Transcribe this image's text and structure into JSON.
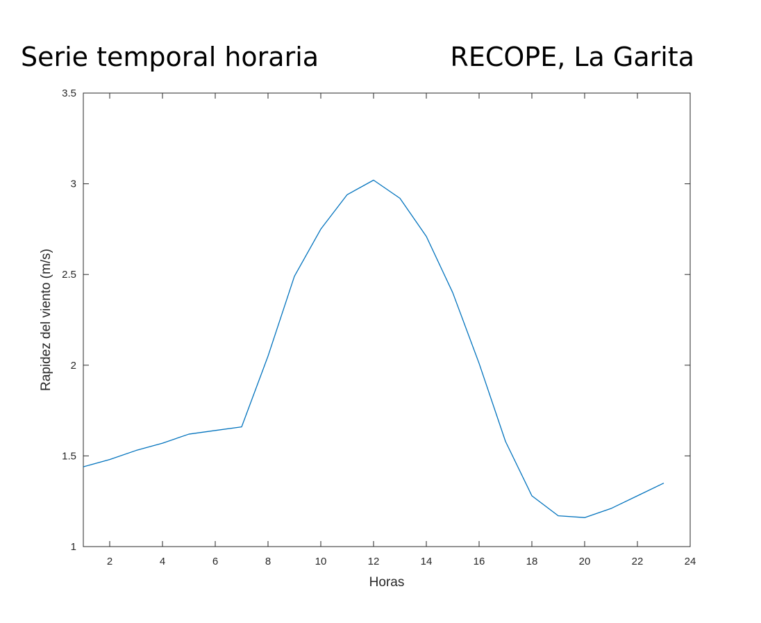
{
  "header": {
    "title_left": "Serie temporal horaria",
    "title_right": "RECOPE, La Garita"
  },
  "chart_data": {
    "type": "line",
    "xlabel": "Horas",
    "ylabel": "Rapidez del viento (m/s)",
    "xlim": [
      1,
      24
    ],
    "ylim": [
      1,
      3.5
    ],
    "xticks": [
      2,
      4,
      6,
      8,
      10,
      12,
      14,
      16,
      18,
      20,
      22,
      24
    ],
    "yticks": [
      1,
      1.5,
      2,
      2.5,
      3,
      3.5
    ],
    "ytick_labels": [
      "1",
      "1.5",
      "2",
      "2.5",
      "3",
      "3.5"
    ],
    "grid": false,
    "line_color": "#0072BD",
    "axis_color": "#262626",
    "series": [
      {
        "x": [
          1,
          2,
          3,
          4,
          5,
          6,
          7,
          8,
          9,
          10,
          11,
          12,
          13,
          14,
          15,
          16,
          17,
          18,
          19,
          20,
          21,
          22,
          23
        ],
        "y": [
          1.44,
          1.48,
          1.53,
          1.57,
          1.62,
          1.64,
          1.66,
          2.05,
          2.49,
          2.75,
          2.94,
          3.02,
          2.92,
          2.71,
          2.4,
          2.01,
          1.58,
          1.28,
          1.17,
          1.16,
          1.21,
          1.28,
          1.35
        ]
      }
    ]
  }
}
